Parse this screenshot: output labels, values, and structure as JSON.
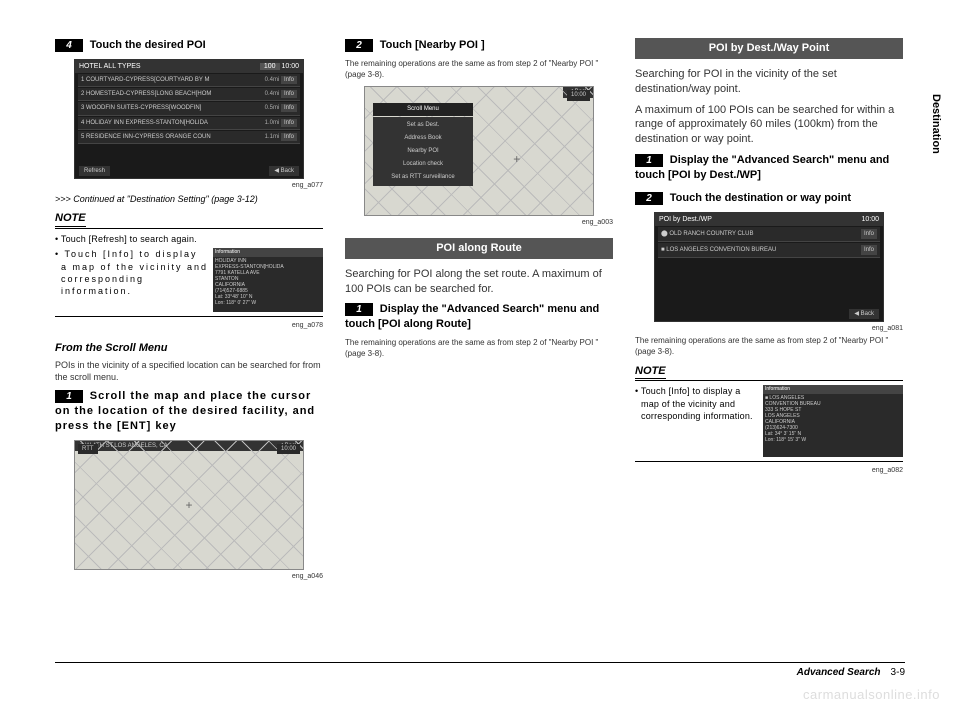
{
  "col1": {
    "step4_num": "4",
    "step4_text": "Touch the desired POI",
    "screen1": {
      "header_left": "HOTEL ALL TYPES",
      "header_mid": "100",
      "header_right": "10:00",
      "rows": [
        {
          "n": "1",
          "name": "COURTYARD-CYPRESS[COURTYARD BY M",
          "dist": "0.4mi",
          "info": "Info"
        },
        {
          "n": "2",
          "name": "HOMESTEAD-CYPRESS[LONG BEACH[HOM",
          "dist": "0.4mi",
          "info": "Info"
        },
        {
          "n": "3",
          "name": "WOODFIN SUITES-CYPRESS[WOODFIN]",
          "dist": "0.5mi",
          "info": "Info"
        },
        {
          "n": "4",
          "name": "HOLIDAY INN EXPRESS-STANTON[HOLIDA",
          "dist": "1.0mi",
          "info": "Info"
        },
        {
          "n": "5",
          "name": "RESIDENCE INN-CYPRESS ORANGE COUN",
          "dist": "1.1mi",
          "info": "Info"
        }
      ],
      "refresh": "Refresh",
      "back": "◀ Back"
    },
    "cap1": "eng_a077",
    "continue": ">>> Continued at \"Destination Setting\" (page 3-12)",
    "note": "NOTE",
    "bullet1": "• Touch [Refresh] to search again.",
    "bullet2": "• Touch [Info] to display a map of the vicinity and corresponding information.",
    "infobox": {
      "h": "Information",
      "t": "HOLIDAY INN\nEXPRESS-STANTON[HOLIDA\n7791 KATELLA AVE\nSTANTON\nCALIFORNIA\n(714)527-6885\nLat:  33°48' 10\" N\nLon: 118°  0' 27\" W"
    },
    "cap2": "eng_a078",
    "subhead": "From the Scroll Menu",
    "sub_body": "POIs in the vicinity of a specified location can be searched for from the scroll menu.",
    "step1_num": "1",
    "step1_text": "Scroll the map and place the cursor on the location of the desired facility, and press the [ENT] key",
    "map_time": "10:00",
    "map_rtt": "RTT",
    "map_loc": "■ W 4TH ST,LOS ANGELES, CA",
    "map_back": "◀ Back",
    "cap3": "eng_a046"
  },
  "col2": {
    "step2_num": "2",
    "step2_text": "Touch [Nearby POI ]",
    "sub1": "The remaining operations are the same as from step 2 of \"Nearby POI \" (page 3-8).",
    "scroll_title": "Scroll Menu",
    "scroll_items": [
      "Set as Dest.",
      "Address Book",
      "Nearby POI",
      "Location check",
      "Set as RTT surveillance"
    ],
    "map_time": "10:00",
    "map_back": "◀ Back",
    "cap1": "eng_a003",
    "section": "POI along Route",
    "body1": "Searching for POI along the set route. A maximum of 100 POIs can be searched for.",
    "step1_num": "1",
    "step1_text": "Display the \"Advanced Search\" menu and touch [POI along Route]",
    "sub2": "The remaining operations are the same as from step 2 of \"Nearby POI \" (page 3-8)."
  },
  "col3": {
    "section": "POI by Dest./Way Point",
    "body1": "Searching for POI in the vicinity of the set destination/way point.",
    "body2": "A maximum of 100 POIs can be searched for within a range of approximately 60 miles (100km) from the destination or way point.",
    "step1_num": "1",
    "step1_text": "Display the \"Advanced Search\" menu and touch [POI by Dest./WP]",
    "step2_num": "2",
    "step2_text": "Touch the destination or way point",
    "screen": {
      "header": "POI by Dest./WP",
      "time": "10:00",
      "rows": [
        {
          "icon": "⬤",
          "name": "OLD RANCH COUNTRY CLUB",
          "info": "Info"
        },
        {
          "icon": "■",
          "name": "LOS ANGELES CONVENTION BUREAU",
          "info": "Info"
        }
      ],
      "back": "◀ Back"
    },
    "cap1": "eng_a081",
    "sub1": "The remaining operations are the same as from step 2 of \"Nearby POI \" (page 3-8).",
    "note": "NOTE",
    "bullet1": "• Touch [Info] to display a map of the vicinity and corresponding information.",
    "infobox": {
      "h": "Information",
      "t": "■ LOS ANGELES\nCONVENTION BUREAU\n333 S HOPE ST\nLOS ANGELES\nCALIFORNIA\n(213)624-7300\nLat:  34°  3' 15\" N\nLon: 118° 15'  3\" W"
    },
    "cap2": "eng_a082"
  },
  "sidetab": "Destination",
  "footer": {
    "title": "Advanced Search",
    "page": "3-9"
  },
  "watermark": "carmanualsonline.info"
}
